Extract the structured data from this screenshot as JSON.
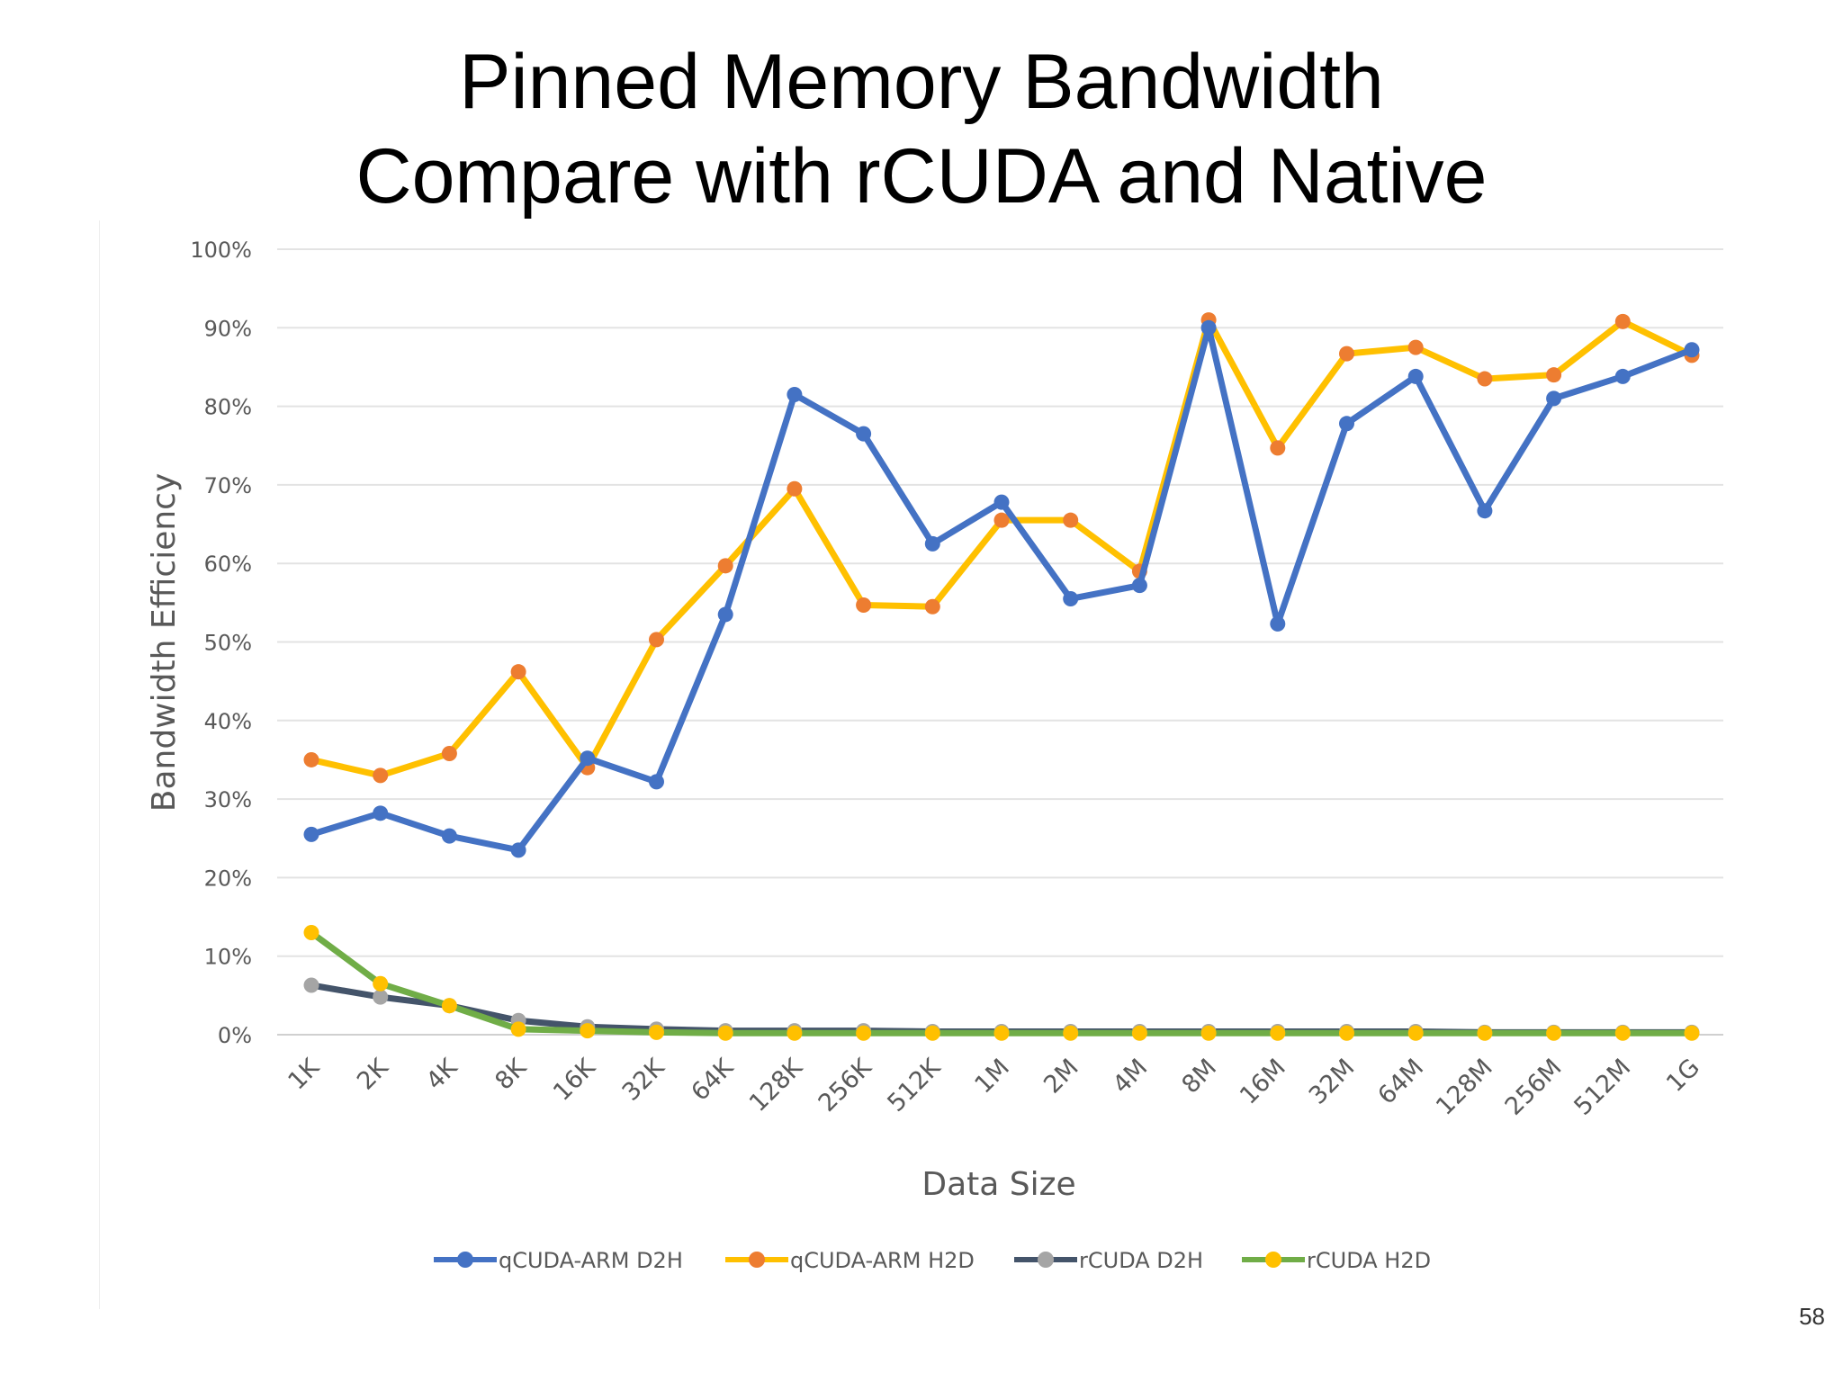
{
  "slide": {
    "title_line1": "Pinned Memory Bandwidth",
    "title_line2": "Compare with rCUDA and Native",
    "slide_number": "58"
  },
  "chart_data": {
    "type": "line",
    "xlabel": "Data Size",
    "ylabel": "Bandwidth Efficiency",
    "categories": [
      "1K",
      "2K",
      "4K",
      "8K",
      "16K",
      "32K",
      "64K",
      "128K",
      "256K",
      "512K",
      "1M",
      "2M",
      "4M",
      "8M",
      "16M",
      "32M",
      "64M",
      "128M",
      "256M",
      "512M",
      "1G"
    ],
    "y_tick_labels": [
      "0%",
      "10%",
      "20%",
      "30%",
      "40%",
      "50%",
      "60%",
      "70%",
      "80%",
      "90%",
      "100%"
    ],
    "ylim": [
      0,
      100
    ],
    "y_unit": "%",
    "grid": "horizontal",
    "legend_position": "bottom",
    "series": [
      {
        "name": "qCUDA-ARM D2H",
        "line_color": "#4472C4",
        "marker_color": "#4472C4",
        "values": [
          25.5,
          28.2,
          25.3,
          23.5,
          35.2,
          32.2,
          53.5,
          81.5,
          76.5,
          62.5,
          67.8,
          55.5,
          57.2,
          90.0,
          52.3,
          77.8,
          83.8,
          66.7,
          81.0,
          83.8,
          87.2
        ]
      },
      {
        "name": "qCUDA-ARM H2D",
        "line_color": "#FFC000",
        "marker_color": "#ED7D31",
        "values": [
          35.0,
          33.0,
          35.8,
          46.2,
          34.0,
          50.3,
          59.7,
          69.5,
          54.7,
          54.5,
          65.5,
          65.5,
          59.0,
          91.0,
          74.7,
          86.7,
          87.5,
          83.5,
          84.0,
          90.8,
          86.5
        ]
      },
      {
        "name": "rCUDA D2H",
        "line_color": "#44546A",
        "marker_color": "#A5A5A5",
        "values": [
          6.3,
          4.8,
          3.7,
          1.8,
          1.0,
          0.7,
          0.5,
          0.5,
          0.5,
          0.4,
          0.4,
          0.4,
          0.4,
          0.4,
          0.4,
          0.4,
          0.4,
          0.3,
          0.3,
          0.3,
          0.3
        ]
      },
      {
        "name": "rCUDA H2D",
        "line_color": "#70AD47",
        "marker_color": "#FFC000",
        "values": [
          13.0,
          6.5,
          3.7,
          0.7,
          0.5,
          0.3,
          0.2,
          0.2,
          0.2,
          0.2,
          0.2,
          0.2,
          0.2,
          0.2,
          0.2,
          0.2,
          0.2,
          0.2,
          0.2,
          0.2,
          0.2
        ]
      }
    ]
  }
}
